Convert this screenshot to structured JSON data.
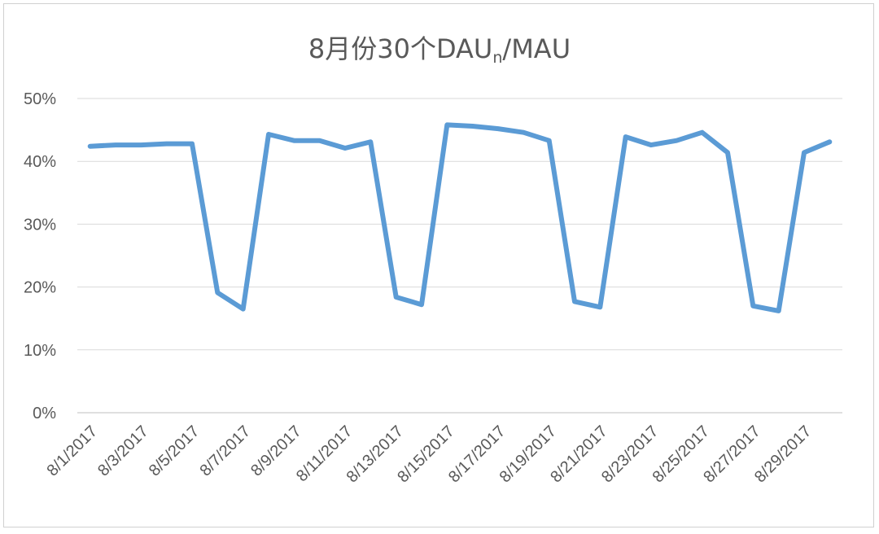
{
  "chart_data": {
    "type": "line",
    "title": "8月份30个DAU",
    "title_subscript": "n",
    "title_suffix": "/MAU",
    "xlabel": "",
    "ylabel": "",
    "ylim": [
      0,
      0.5
    ],
    "y_ticks": [
      "0%",
      "10%",
      "20%",
      "30%",
      "40%",
      "50%"
    ],
    "grid": true,
    "legend": "none",
    "line_color": "#5B9BD5",
    "x_tick_labels": [
      "8/1/2017",
      "8/3/2017",
      "8/5/2017",
      "8/7/2017",
      "8/9/2017",
      "8/11/2017",
      "8/13/2017",
      "8/15/2017",
      "8/17/2017",
      "8/19/2017",
      "8/21/2017",
      "8/23/2017",
      "8/25/2017",
      "8/27/2017",
      "8/29/2017"
    ],
    "x": [
      "8/1/2017",
      "8/2/2017",
      "8/3/2017",
      "8/4/2017",
      "8/5/2017",
      "8/6/2017",
      "8/7/2017",
      "8/8/2017",
      "8/9/2017",
      "8/10/2017",
      "8/11/2017",
      "8/12/2017",
      "8/13/2017",
      "8/14/2017",
      "8/15/2017",
      "8/16/2017",
      "8/17/2017",
      "8/18/2017",
      "8/19/2017",
      "8/20/2017",
      "8/21/2017",
      "8/22/2017",
      "8/23/2017",
      "8/24/2017",
      "8/25/2017",
      "8/26/2017",
      "8/27/2017",
      "8/28/2017",
      "8/29/2017",
      "8/30/2017"
    ],
    "series": [
      {
        "values": [
          0.424,
          0.426,
          0.426,
          0.428,
          0.428,
          0.191,
          0.165,
          0.443,
          0.433,
          0.433,
          0.421,
          0.431,
          0.184,
          0.172,
          0.458,
          0.456,
          0.452,
          0.446,
          0.433,
          0.177,
          0.168,
          0.439,
          0.426,
          0.433,
          0.446,
          0.414,
          0.17,
          0.162,
          0.414,
          0.431
        ]
      }
    ]
  }
}
